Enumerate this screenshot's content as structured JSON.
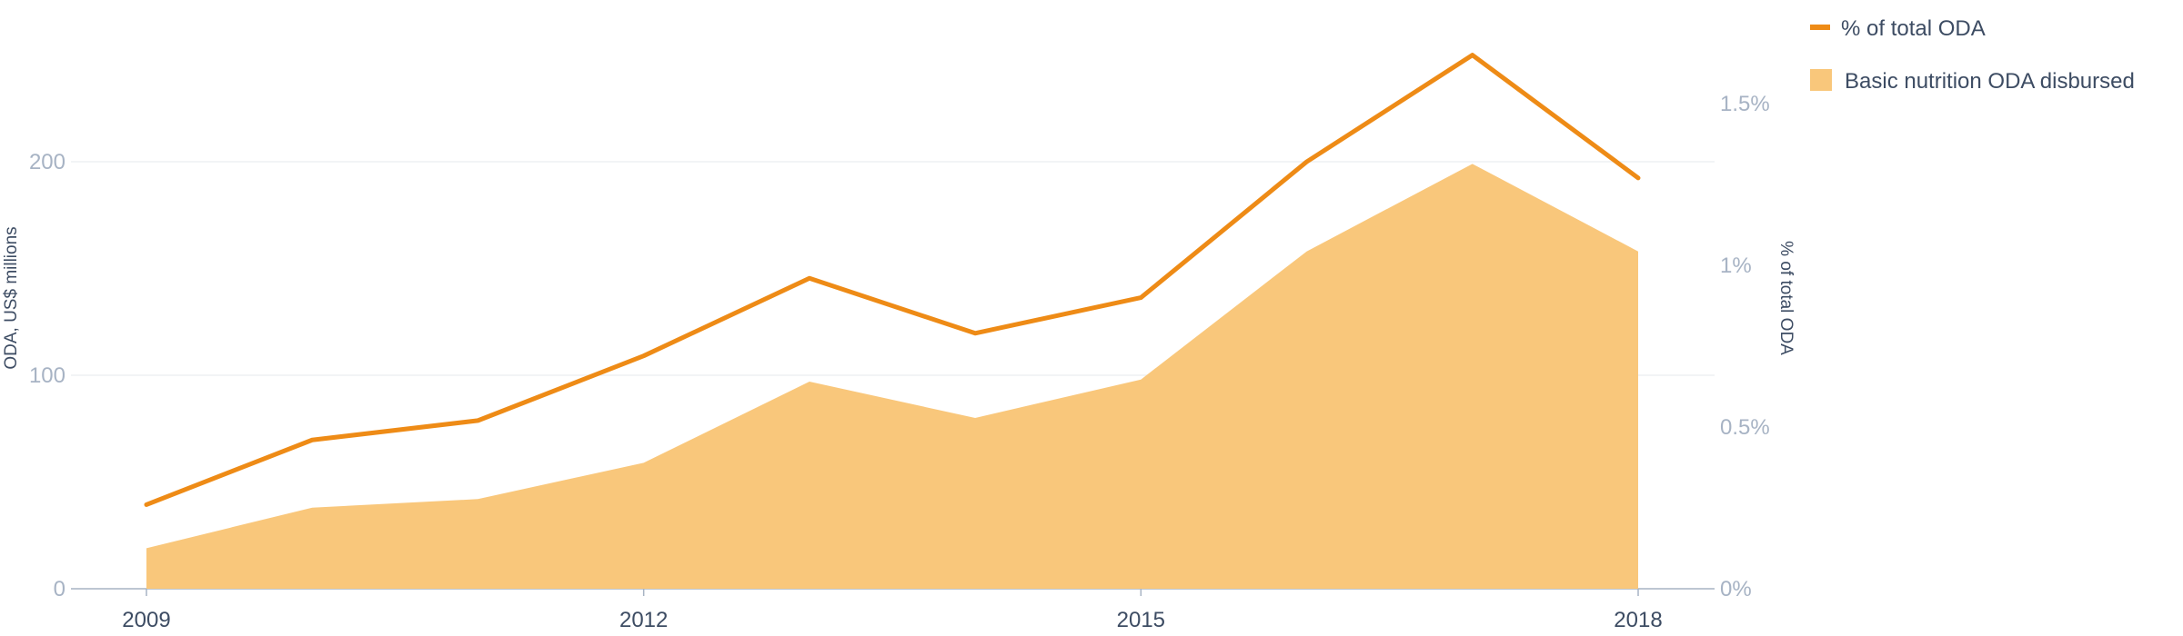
{
  "chart_data": {
    "type": "area",
    "x": [
      2009,
      2010,
      2011,
      2012,
      2013,
      2014,
      2015,
      2016,
      2017,
      2018
    ],
    "x_tick_labels": [
      "2009",
      "2012",
      "2015",
      "2018"
    ],
    "x_tick_values": [
      2009,
      2012,
      2015,
      2018
    ],
    "series": [
      {
        "name": "Basic nutrition ODA disbursed",
        "kind": "area",
        "axis": "left",
        "color": "#f9c77b",
        "values": [
          19,
          38,
          42,
          59,
          97,
          80,
          98,
          158,
          199,
          158
        ]
      },
      {
        "name": "% of total ODA",
        "kind": "line",
        "axis": "right",
        "color": "#ee8b16",
        "values": [
          0.26,
          0.46,
          0.52,
          0.72,
          0.96,
          0.79,
          0.9,
          1.32,
          1.65,
          1.27
        ]
      }
    ],
    "left_axis": {
      "label": "ODA, US$ millions",
      "range": [
        0,
        200
      ],
      "ticks": [
        0,
        100,
        200
      ],
      "tick_labels": [
        "0",
        "100",
        "200"
      ]
    },
    "right_axis": {
      "label": "% of total ODA",
      "range": [
        0,
        1.5
      ],
      "ticks": [
        0,
        0.5,
        1,
        1.5
      ],
      "tick_labels": [
        "0%",
        "0.5%",
        "1%",
        "1.5%"
      ]
    },
    "grid": "horizontal",
    "legend_position": "top-right",
    "legend": [
      {
        "label": "% of total ODA",
        "marker": "line",
        "color": "#ee8b16"
      },
      {
        "label": "Basic nutrition ODA disbursed",
        "marker": "square",
        "color": "#f9c77b"
      }
    ],
    "colors": {
      "grid": "#eef0f3",
      "baseline": "#a7b3c4",
      "left_tick": "#a7b3c4",
      "right_tick": "#a7b3c4",
      "x_tick": "#3d4c63",
      "label": "#3d4c63"
    }
  }
}
